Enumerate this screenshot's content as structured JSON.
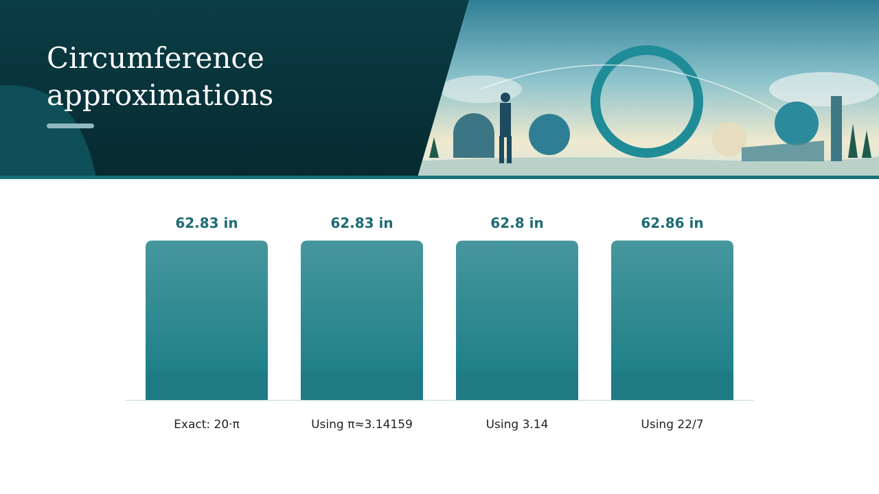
{
  "chart_data": {
    "type": "bar",
    "title": "Circumference approximations",
    "categories": [
      "Exact: 20·π",
      "Using π≈3.14159",
      "Using 3.14",
      "Using 22/7"
    ],
    "values": [
      62.83,
      62.83,
      62.8,
      62.86
    ],
    "value_labels": [
      "62.83 in",
      "62.83 in",
      "62.8 in",
      "62.86 in"
    ],
    "color": "#1f8088",
    "ylim": [
      0,
      63
    ]
  }
}
